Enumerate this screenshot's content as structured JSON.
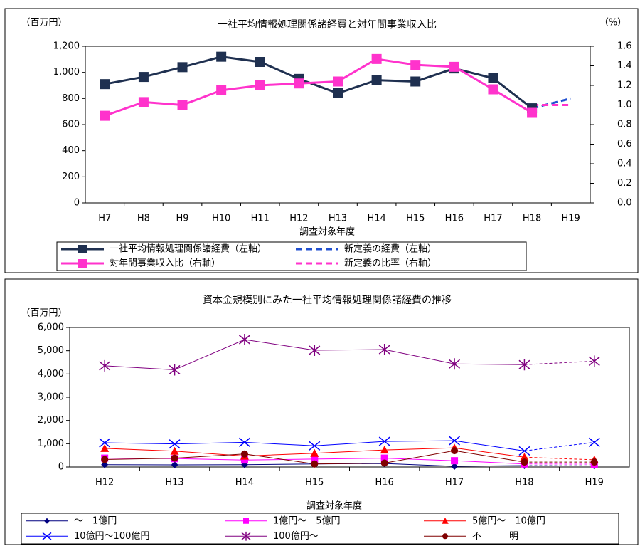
{
  "chart_data": [
    {
      "type": "line",
      "title": "一社平均情報処理関係諸経費と対年間事業収入比",
      "y_label": "（百万円）",
      "y2_label": "（%）",
      "x_label": "調査対象年度",
      "categories": [
        "H7",
        "H8",
        "H9",
        "H10",
        "H11",
        "H12",
        "H13",
        "H14",
        "H15",
        "H16",
        "H17",
        "H18",
        "H19"
      ],
      "ylim": [
        0,
        1200
      ],
      "yticks": [
        0,
        200,
        400,
        600,
        800,
        {
          "value": 1000,
          "label": "1,000"
        },
        {
          "value": 1200,
          "label": "1,200"
        }
      ],
      "y2lim": [
        0,
        1.6
      ],
      "y2ticks": [
        {
          "value": 0,
          "label": "0.0"
        },
        0.2,
        0.4,
        0.6,
        0.8,
        {
          "value": 1,
          "label": "1.0"
        },
        1.2,
        1.4,
        1.6
      ],
      "series": [
        {
          "name": "一社平均情報処理関係諸経費（左軸）",
          "color": "#1f3050",
          "marker": "square",
          "values": [
            910,
            965,
            1040,
            1120,
            1080,
            950,
            840,
            940,
            930,
            1030,
            955,
            725,
            null
          ]
        },
        {
          "name": "新定義の経費（左軸）",
          "color": "#1f4fd0",
          "dashed": true,
          "values": [
            null,
            null,
            null,
            null,
            null,
            null,
            null,
            null,
            null,
            null,
            null,
            725,
            800
          ]
        },
        {
          "name": "対年間事業収入比（右軸）",
          "color": "#ff33cc",
          "marker": "square",
          "axis": "y2",
          "values": [
            0.89,
            1.03,
            1.0,
            1.15,
            1.2,
            1.22,
            1.24,
            1.47,
            1.41,
            1.39,
            1.16,
            0.92,
            null
          ]
        },
        {
          "name": "新定義の比率（右軸）",
          "color": "#ff33cc",
          "dashed": true,
          "axis": "y2",
          "values": [
            null,
            null,
            null,
            null,
            null,
            null,
            null,
            null,
            null,
            null,
            null,
            1.0,
            1.0
          ]
        }
      ]
    },
    {
      "type": "line",
      "title": "資本金規模別にみた一社平均情報処理関係諸経費の推移",
      "y_label": "（百万円）",
      "x_label": "調査対象年度",
      "categories": [
        "H12",
        "H13",
        "H14",
        "H15",
        "H16",
        "H17",
        "H18",
        "H19"
      ],
      "dashed_from": "H18",
      "ylim": [
        0,
        6000
      ],
      "yticks": [
        0,
        {
          "value": 1000,
          "label": "1,000"
        },
        {
          "value": 2000,
          "label": "2,000"
        },
        {
          "value": 3000,
          "label": "3,000"
        },
        {
          "value": 4000,
          "label": "4,000"
        },
        {
          "value": 5000,
          "label": "5,000"
        },
        {
          "value": 6000,
          "label": "6,000"
        }
      ],
      "series": [
        {
          "name": "～　1億円",
          "color": "#000080",
          "marker": "diamond",
          "values": [
            100,
            90,
            100,
            130,
            150,
            30,
            60,
            50
          ]
        },
        {
          "name": "1億円～　5億円",
          "color": "#ff00ff",
          "marker": "square",
          "values": [
            380,
            360,
            300,
            340,
            380,
            270,
            130,
            120
          ]
        },
        {
          "name": "5億円～　10億円",
          "color": "#ff0000",
          "marker": "triangle",
          "values": [
            800,
            680,
            470,
            590,
            730,
            820,
            420,
            310
          ]
        },
        {
          "name": "10億円～100億円",
          "color": "#0000ff",
          "marker": "x",
          "values": [
            1040,
            990,
            1060,
            910,
            1100,
            1130,
            690,
            1060
          ]
        },
        {
          "name": "100億円～",
          "color": "#800080",
          "marker": "star",
          "values": [
            4350,
            4180,
            5480,
            5020,
            5050,
            4430,
            4400,
            4550
          ]
        },
        {
          "name": "不　　　明",
          "color": "#800000",
          "marker": "circle",
          "values": [
            320,
            380,
            560,
            130,
            170,
            700,
            210,
            210
          ]
        }
      ]
    }
  ]
}
